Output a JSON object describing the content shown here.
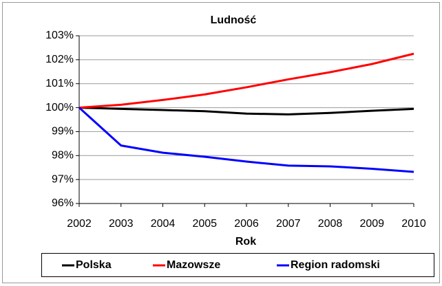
{
  "chart_data": {
    "type": "line",
    "title": "Ludność",
    "x_label": "Rok",
    "categories": [
      "2002",
      "2003",
      "2004",
      "2005",
      "2006",
      "2007",
      "2008",
      "2009",
      "2010"
    ],
    "series": [
      {
        "name": "Polska",
        "color": "#000000",
        "values": [
          100,
          99.95,
          99.9,
          99.85,
          99.75,
          99.72,
          99.78,
          99.87,
          99.95
        ]
      },
      {
        "name": "Mazowsze",
        "color": "#ff0000",
        "values": [
          100,
          100.12,
          100.32,
          100.55,
          100.85,
          101.18,
          101.48,
          101.82,
          102.25
        ]
      },
      {
        "name": "Region radomski",
        "color": "#0000ff",
        "values": [
          100,
          98.42,
          98.12,
          97.95,
          97.75,
          97.58,
          97.55,
          97.45,
          97.32
        ]
      }
    ],
    "ylim": [
      96,
      103
    ],
    "yticks": [
      {
        "value": 96,
        "label": "96%"
      },
      {
        "value": 97,
        "label": "97%"
      },
      {
        "value": 98,
        "label": "98%"
      },
      {
        "value": 99,
        "label": "99%"
      },
      {
        "value": 100,
        "label": "100%"
      },
      {
        "value": 101,
        "label": "101%"
      },
      {
        "value": 102,
        "label": "102%"
      },
      {
        "value": 103,
        "label": "103%"
      }
    ],
    "grid": true,
    "legend": "bottom"
  }
}
